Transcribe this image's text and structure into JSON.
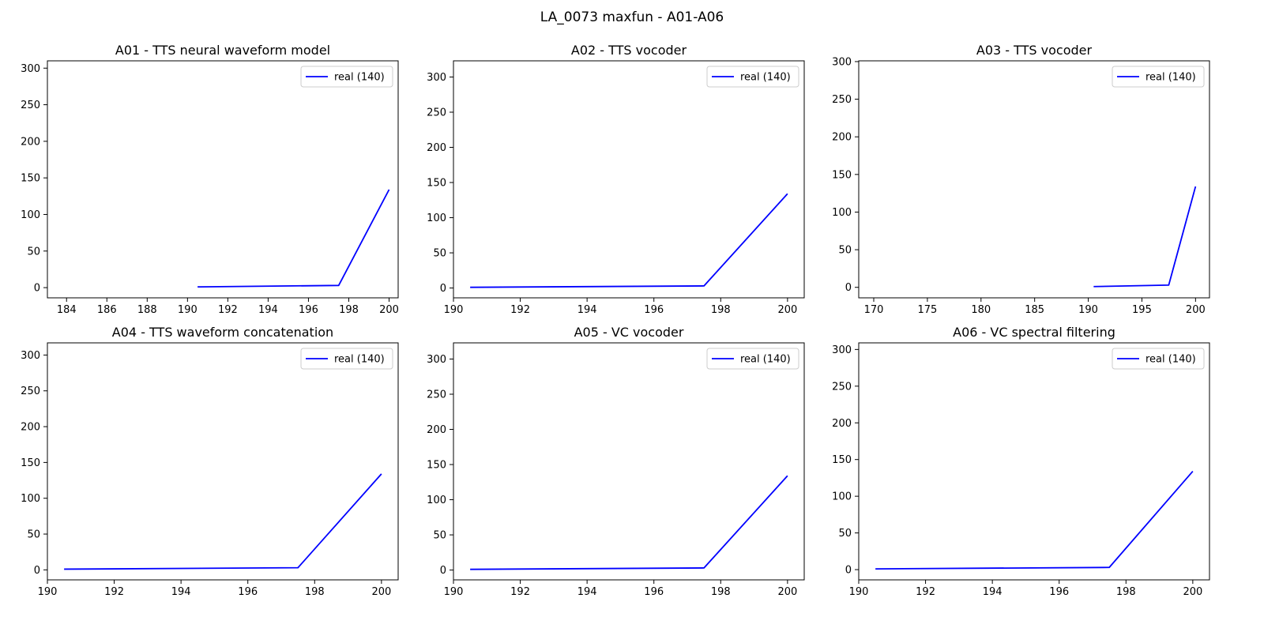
{
  "figure": {
    "suptitle": "LA_0073 maxfun - A01-A06"
  },
  "colors": {
    "line": "#0000ff",
    "axes": "#000000",
    "legend_border": "#cccccc"
  },
  "chart_data": [
    {
      "type": "line",
      "title": "A01 - TTS neural waveform model",
      "xlim": [
        183.05,
        200.45
      ],
      "ylim": [
        -13.95,
        310
      ],
      "xticks": [
        184,
        186,
        188,
        190,
        192,
        194,
        196,
        198,
        200
      ],
      "yticks": [
        0,
        50,
        100,
        150,
        200,
        250,
        300
      ],
      "grid": false,
      "legend_position": "upper right",
      "series": [
        {
          "name": "real (140)",
          "x": [
            190.5,
            197.5,
            200
          ],
          "y": [
            1,
            3,
            134
          ]
        }
      ]
    },
    {
      "type": "line",
      "title": "A02 - TTS vocoder",
      "xlim": [
        190.0,
        200.5
      ],
      "ylim": [
        -13.95,
        323
      ],
      "xticks": [
        190,
        192,
        194,
        196,
        198,
        200
      ],
      "yticks": [
        0,
        50,
        100,
        150,
        200,
        250,
        300
      ],
      "grid": false,
      "legend_position": "upper right",
      "series": [
        {
          "name": "real (140)",
          "x": [
            190.5,
            197.5,
            200
          ],
          "y": [
            1,
            3,
            134
          ]
        }
      ]
    },
    {
      "type": "line",
      "title": "A03 - TTS vocoder",
      "xlim": [
        168.6,
        201.3
      ],
      "ylim": [
        -13.95,
        301
      ],
      "xticks": [
        170,
        175,
        180,
        185,
        190,
        195,
        200
      ],
      "yticks": [
        0,
        50,
        100,
        150,
        200,
        250,
        300
      ],
      "grid": false,
      "legend_position": "upper right",
      "series": [
        {
          "name": "real (140)",
          "x": [
            190.5,
            197.5,
            200
          ],
          "y": [
            1,
            3,
            134
          ]
        }
      ]
    },
    {
      "type": "line",
      "title": "A04 - TTS waveform concatenation",
      "xlim": [
        190.0,
        200.5
      ],
      "ylim": [
        -13.95,
        317
      ],
      "xticks": [
        190,
        192,
        194,
        196,
        198,
        200
      ],
      "yticks": [
        0,
        50,
        100,
        150,
        200,
        250,
        300
      ],
      "grid": false,
      "legend_position": "upper right",
      "series": [
        {
          "name": "real (140)",
          "x": [
            190.5,
            197.5,
            200
          ],
          "y": [
            1,
            3,
            134
          ]
        }
      ]
    },
    {
      "type": "line",
      "title": "A05 - VC vocoder",
      "xlim": [
        190.0,
        200.5
      ],
      "ylim": [
        -13.95,
        323
      ],
      "xticks": [
        190,
        192,
        194,
        196,
        198,
        200
      ],
      "yticks": [
        0,
        50,
        100,
        150,
        200,
        250,
        300
      ],
      "grid": false,
      "legend_position": "upper right",
      "series": [
        {
          "name": "real (140)",
          "x": [
            190.5,
            197.5,
            200
          ],
          "y": [
            1,
            3,
            134
          ]
        }
      ]
    },
    {
      "type": "line",
      "title": "A06 - VC spectral filtering",
      "xlim": [
        190.0,
        200.5
      ],
      "ylim": [
        -13.95,
        309
      ],
      "xticks": [
        190,
        192,
        194,
        196,
        198,
        200
      ],
      "yticks": [
        0,
        50,
        100,
        150,
        200,
        250,
        300
      ],
      "grid": false,
      "legend_position": "upper right",
      "series": [
        {
          "name": "real (140)",
          "x": [
            190.5,
            197.5,
            200
          ],
          "y": [
            1,
            3,
            134
          ]
        }
      ]
    }
  ]
}
